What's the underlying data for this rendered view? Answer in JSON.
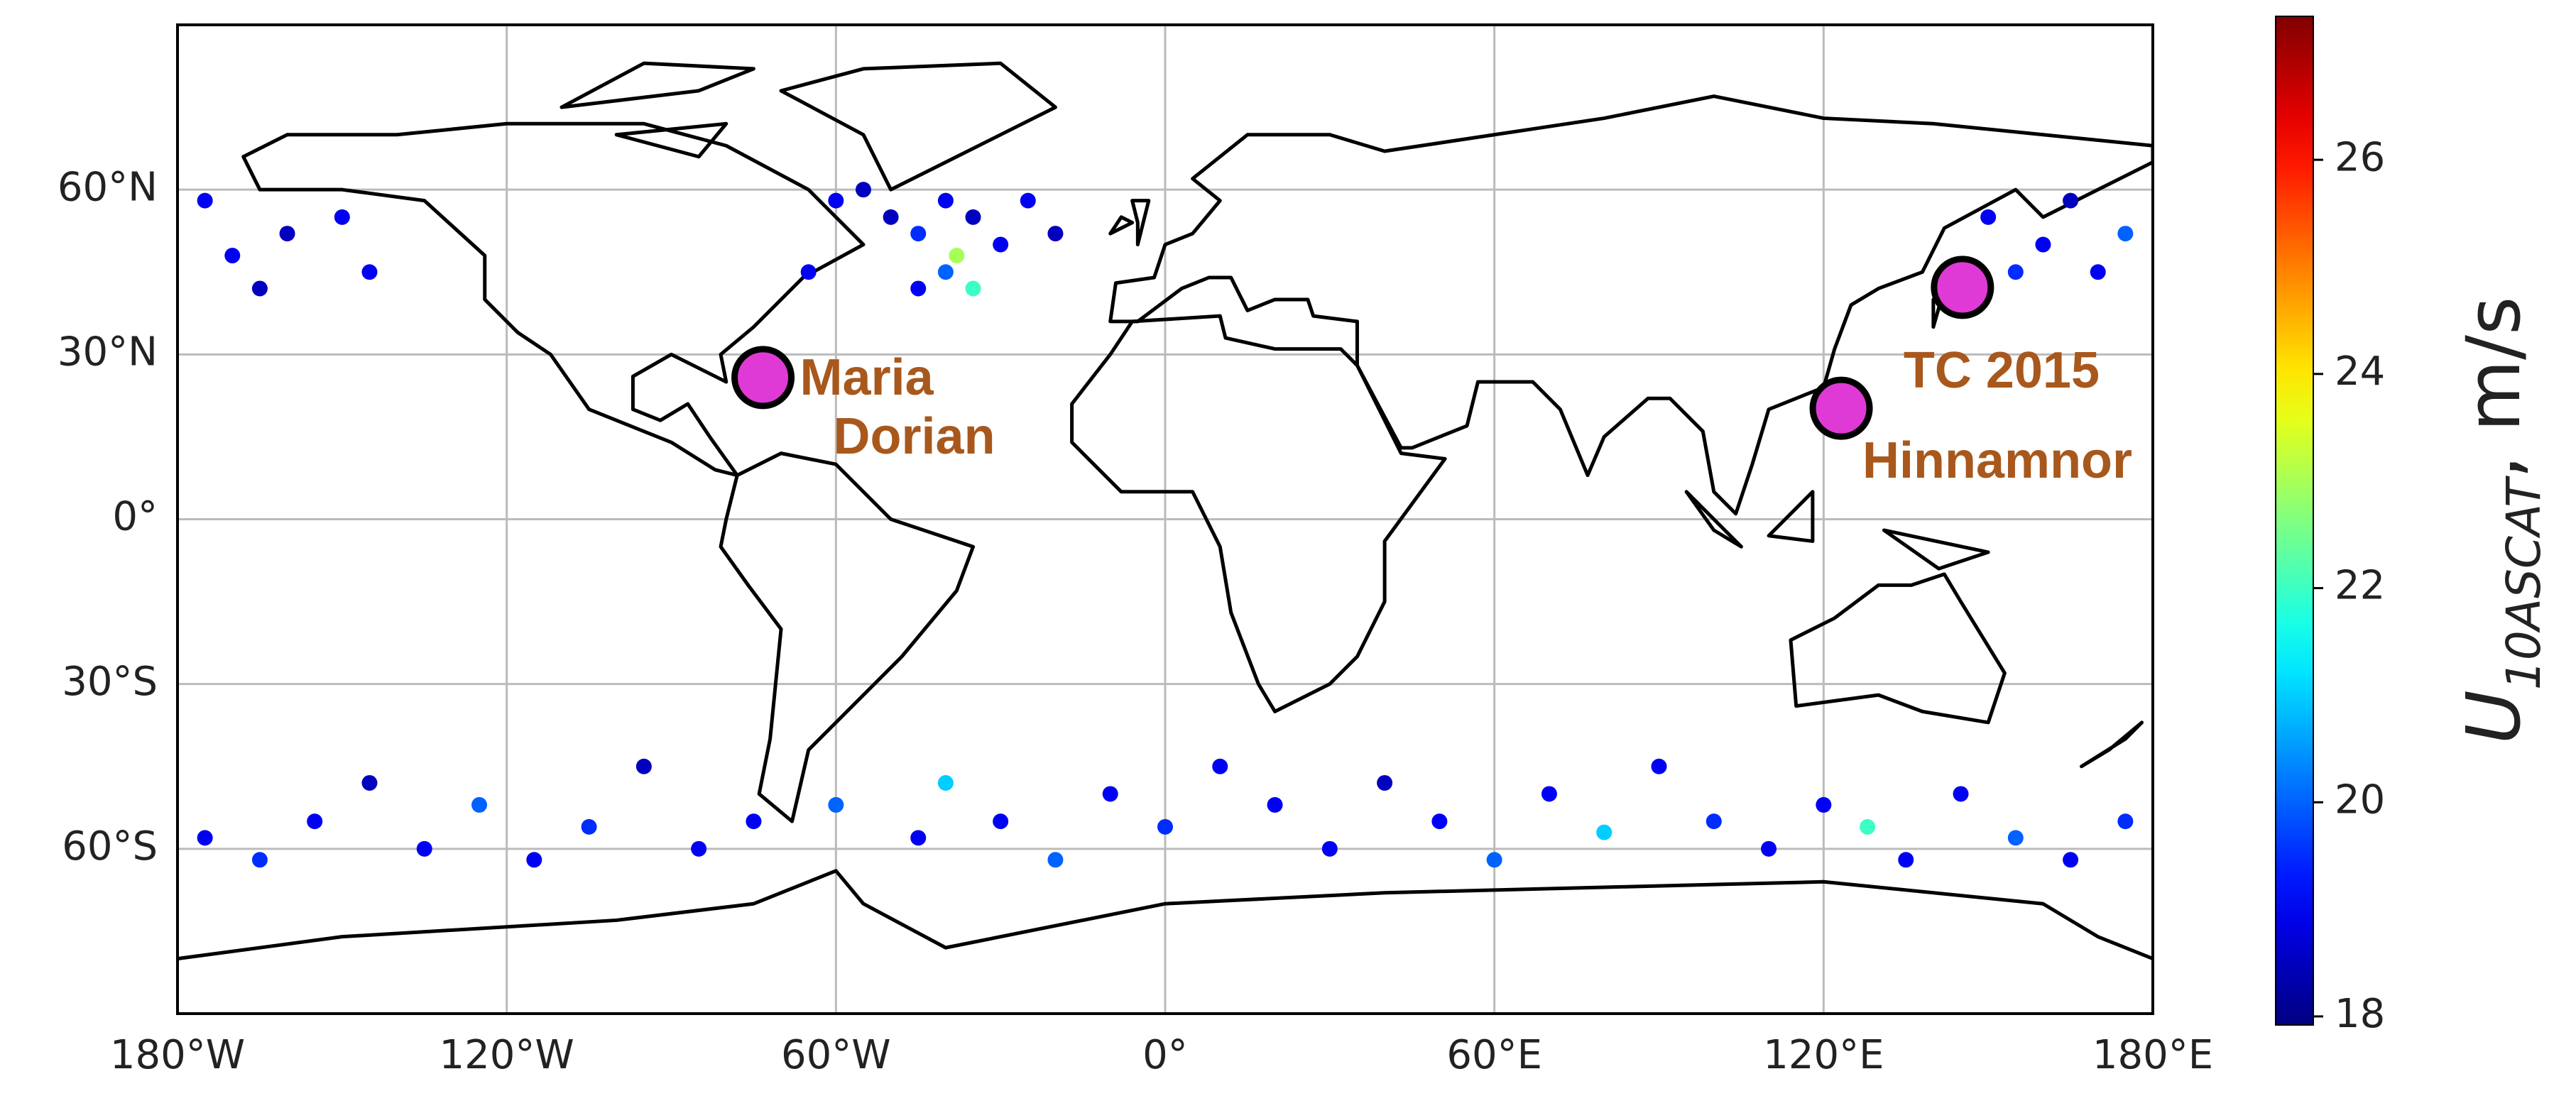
{
  "chart_data": {
    "type": "scatter",
    "x": [
      -60,
      -50,
      -45,
      -40,
      -35,
      -30,
      -40,
      -45,
      -35,
      -38,
      -55,
      -25,
      -20,
      -65,
      -175,
      -170,
      -160,
      -150,
      -145,
      -165,
      150,
      160,
      165,
      170,
      175,
      155,
      -175,
      -165,
      -155,
      -145,
      -135,
      -125,
      -115,
      -105,
      -95,
      -85,
      -75,
      -60,
      -45,
      -40,
      -30,
      -20,
      -10,
      0,
      10,
      20,
      30,
      40,
      50,
      60,
      70,
      80,
      90,
      100,
      110,
      120,
      128,
      135,
      145,
      155,
      165,
      175
    ],
    "y": [
      58,
      55,
      52,
      58,
      55,
      50,
      45,
      42,
      42,
      48,
      60,
      58,
      52,
      45,
      58,
      48,
      52,
      55,
      45,
      42,
      55,
      50,
      58,
      45,
      52,
      45,
      -58,
      -62,
      -55,
      -48,
      -60,
      -52,
      -62,
      -56,
      -45,
      -60,
      -55,
      -52,
      -58,
      -48,
      -55,
      -62,
      -50,
      -56,
      -45,
      -52,
      -60,
      -48,
      -55,
      -62,
      -50,
      -57,
      -45,
      -55,
      -60,
      -52,
      -56,
      -62,
      -50,
      -58,
      -62,
      -55
    ],
    "values": [
      19,
      18.5,
      19.5,
      19,
      18.5,
      19,
      20,
      19,
      22,
      23,
      18.5,
      19,
      18.5,
      19,
      19,
      19,
      18.5,
      19,
      19,
      18.5,
      19,
      19,
      18.5,
      19,
      20,
      19.5,
      19,
      19.5,
      19,
      18.5,
      19,
      20,
      19,
      19.5,
      18.5,
      19,
      19,
      20,
      19,
      21,
      19,
      20,
      19,
      19.5,
      19,
      19,
      19,
      18.5,
      19,
      20,
      19,
      21,
      19,
      19.5,
      19,
      19,
      22,
      19,
      19,
      20,
      19,
      19.5
    ],
    "xlim": [
      -180,
      180
    ],
    "ylim": [
      -90,
      90
    ],
    "xticks": [
      {
        "value": -180,
        "label": "180°W"
      },
      {
        "value": -120,
        "label": "120°W"
      },
      {
        "value": -60,
        "label": "60°W"
      },
      {
        "value": 0,
        "label": "0°"
      },
      {
        "value": 60,
        "label": "60°E"
      },
      {
        "value": 120,
        "label": "120°E"
      },
      {
        "value": 180,
        "label": "180°E"
      }
    ],
    "yticks": [
      {
        "value": 60,
        "label": "60°N"
      },
      {
        "value": 30,
        "label": "30°N"
      },
      {
        "value": 0,
        "label": "0°"
      },
      {
        "value": -30,
        "label": "30°S"
      },
      {
        "value": -60,
        "label": "60°S"
      }
    ],
    "grid": true,
    "colormap": "jet",
    "colorbar": {
      "clim": [
        17.92,
        27.34
      ],
      "ticks": [
        18,
        20,
        22,
        24,
        26
      ],
      "label": {
        "symbol": "U",
        "subscript": "10ASCAT",
        "unit": ", m/s"
      }
    },
    "storms": [
      {
        "labels": [
          "Maria",
          "Dorian"
        ],
        "lon": -73.3,
        "lat": 25.8,
        "color": "#e03ad6"
      },
      {
        "labels": [
          "TC 2015"
        ],
        "lon": 145.3,
        "lat": 42.2,
        "color": "#e03ad6"
      },
      {
        "labels": [
          "Hinnamnor"
        ],
        "lon": 123.2,
        "lat": 20.2,
        "color": "#e03ad6"
      }
    ]
  }
}
